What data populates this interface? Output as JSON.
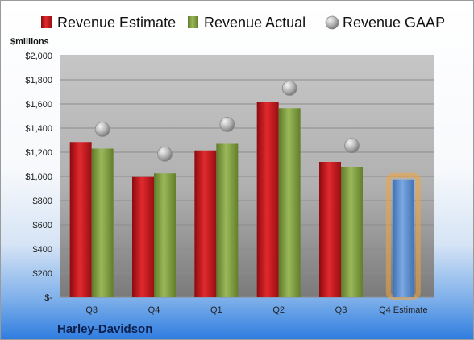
{
  "company": "Harley-Davidson",
  "chart_data": {
    "type": "bar",
    "ylabel": "$millions",
    "ylim": [
      0,
      2000
    ],
    "y_ticks": [
      "$-",
      "$200",
      "$400",
      "$600",
      "$800",
      "$1,000",
      "$1,200",
      "$1,400",
      "$1,600",
      "$1,800",
      "$2,000"
    ],
    "grid": true,
    "legend_position": "top",
    "categories": [
      "Q3",
      "Q4",
      "Q1",
      "Q2",
      "Q3",
      "Q4 Estimate"
    ],
    "series": [
      {
        "name": "Revenue Estimate",
        "kind": "bar",
        "color": "#c0141b",
        "values": [
          1285,
          995,
          1215,
          1620,
          1120,
          null
        ]
      },
      {
        "name": "Revenue Actual",
        "kind": "bar",
        "color": "#7e9c3e",
        "values": [
          1230,
          1025,
          1270,
          1565,
          1080,
          null
        ]
      },
      {
        "name": "Revenue GAAP",
        "kind": "marker",
        "color": "#a9a9a9",
        "values": [
          1390,
          1185,
          1430,
          1730,
          1255,
          null
        ]
      }
    ],
    "forecast": {
      "category": "Q4 Estimate",
      "value": 975,
      "color": "#5b8fd1",
      "glow": "#f2a43a"
    }
  }
}
